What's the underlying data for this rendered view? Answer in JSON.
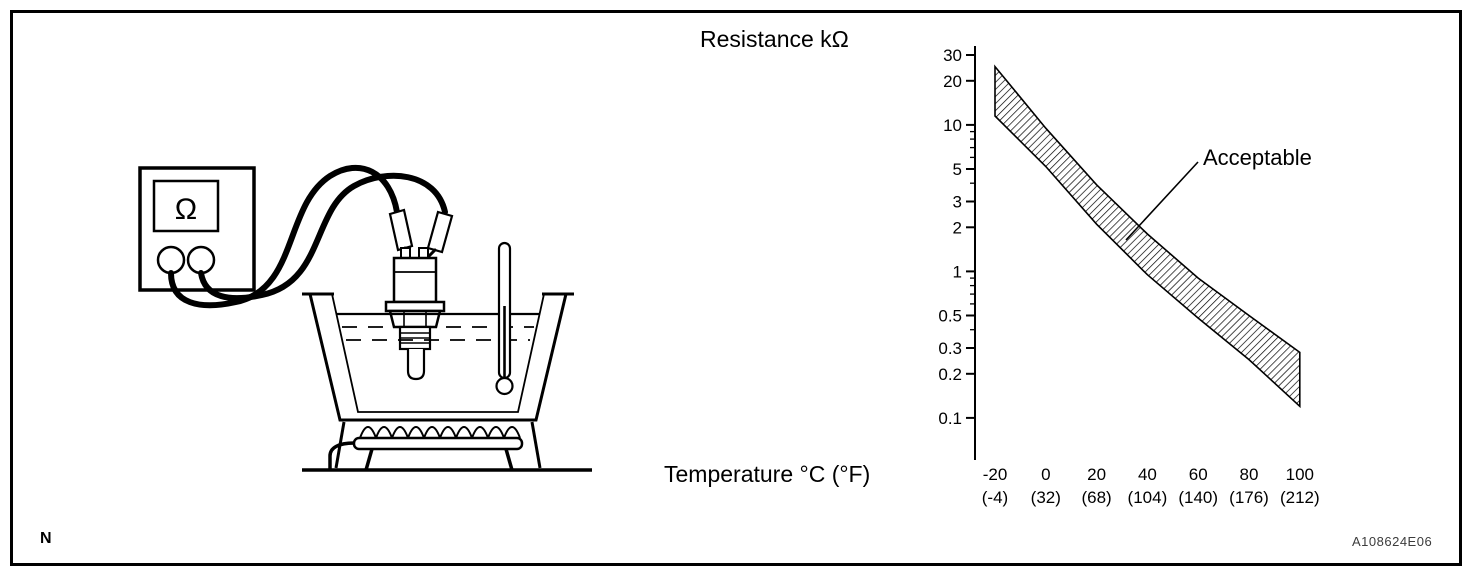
{
  "figure": {
    "index_letter": "N",
    "reference_code": "A108624E06"
  },
  "meter": {
    "omega_label": "Ω"
  },
  "chart_data": {
    "type": "area",
    "title": "",
    "ylabel": "Resistance kΩ",
    "xlabel": "Temperature °C (°F)",
    "y_scale": "log",
    "ylim": [
      0.1,
      30
    ],
    "xlim": [
      -20,
      100
    ],
    "grid": false,
    "legend": false,
    "annotation": "Acceptable",
    "x": [
      -20,
      0,
      20,
      40,
      60,
      80,
      100
    ],
    "x_tick_labels_celsius": [
      "-20",
      "0",
      "20",
      "40",
      "60",
      "80",
      "100"
    ],
    "x_tick_labels_fahrenheit": [
      "(-4)",
      "(32)",
      "(68)",
      "(104)",
      "(140)",
      "(176)",
      "(212)"
    ],
    "y_tick_values": [
      30,
      20,
      10,
      5,
      3,
      2,
      1,
      0.5,
      0.3,
      0.2,
      0.1
    ],
    "y_tick_labels": [
      "30",
      "20",
      "10",
      "5",
      "3",
      "2",
      "1",
      "0.5",
      "0.3",
      "0.2",
      "0.1"
    ],
    "series": [
      {
        "name": "acceptable-upper-limit",
        "values": [
          25,
          9.5,
          3.9,
          1.8,
          0.9,
          0.5,
          0.28
        ]
      },
      {
        "name": "acceptable-lower-limit",
        "values": [
          11.5,
          5.2,
          2.1,
          0.95,
          0.48,
          0.25,
          0.12
        ]
      }
    ]
  }
}
